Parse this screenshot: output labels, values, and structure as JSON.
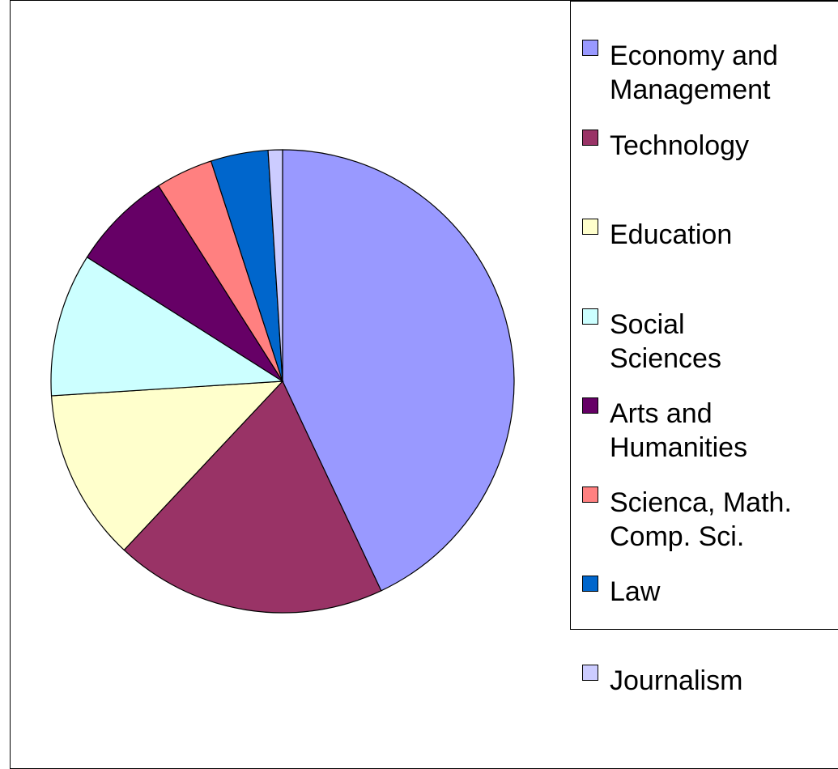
{
  "chart_data": {
    "type": "pie",
    "title": "",
    "start_angle_deg": 0,
    "direction": "clockwise",
    "slices": [
      {
        "label": "Economy and\nManagement",
        "value": 43,
        "color": "#9999ff"
      },
      {
        "label": "Technology",
        "value": 19,
        "color": "#993366"
      },
      {
        "label": "Education",
        "value": 12,
        "color": "#ffffcc"
      },
      {
        "label": "Social\nSciences",
        "value": 10,
        "color": "#ccffff"
      },
      {
        "label": "Arts and\nHumanities",
        "value": 7,
        "color": "#660066"
      },
      {
        "label": "Scienca, Math.\nComp. Sci.",
        "value": 4,
        "color": "#ff8080"
      },
      {
        "label": "Law",
        "value": 4,
        "color": "#0066cc"
      },
      {
        "label": "Journalism",
        "value": 1,
        "color": "#ccccff"
      }
    ],
    "legend_position": "right"
  }
}
